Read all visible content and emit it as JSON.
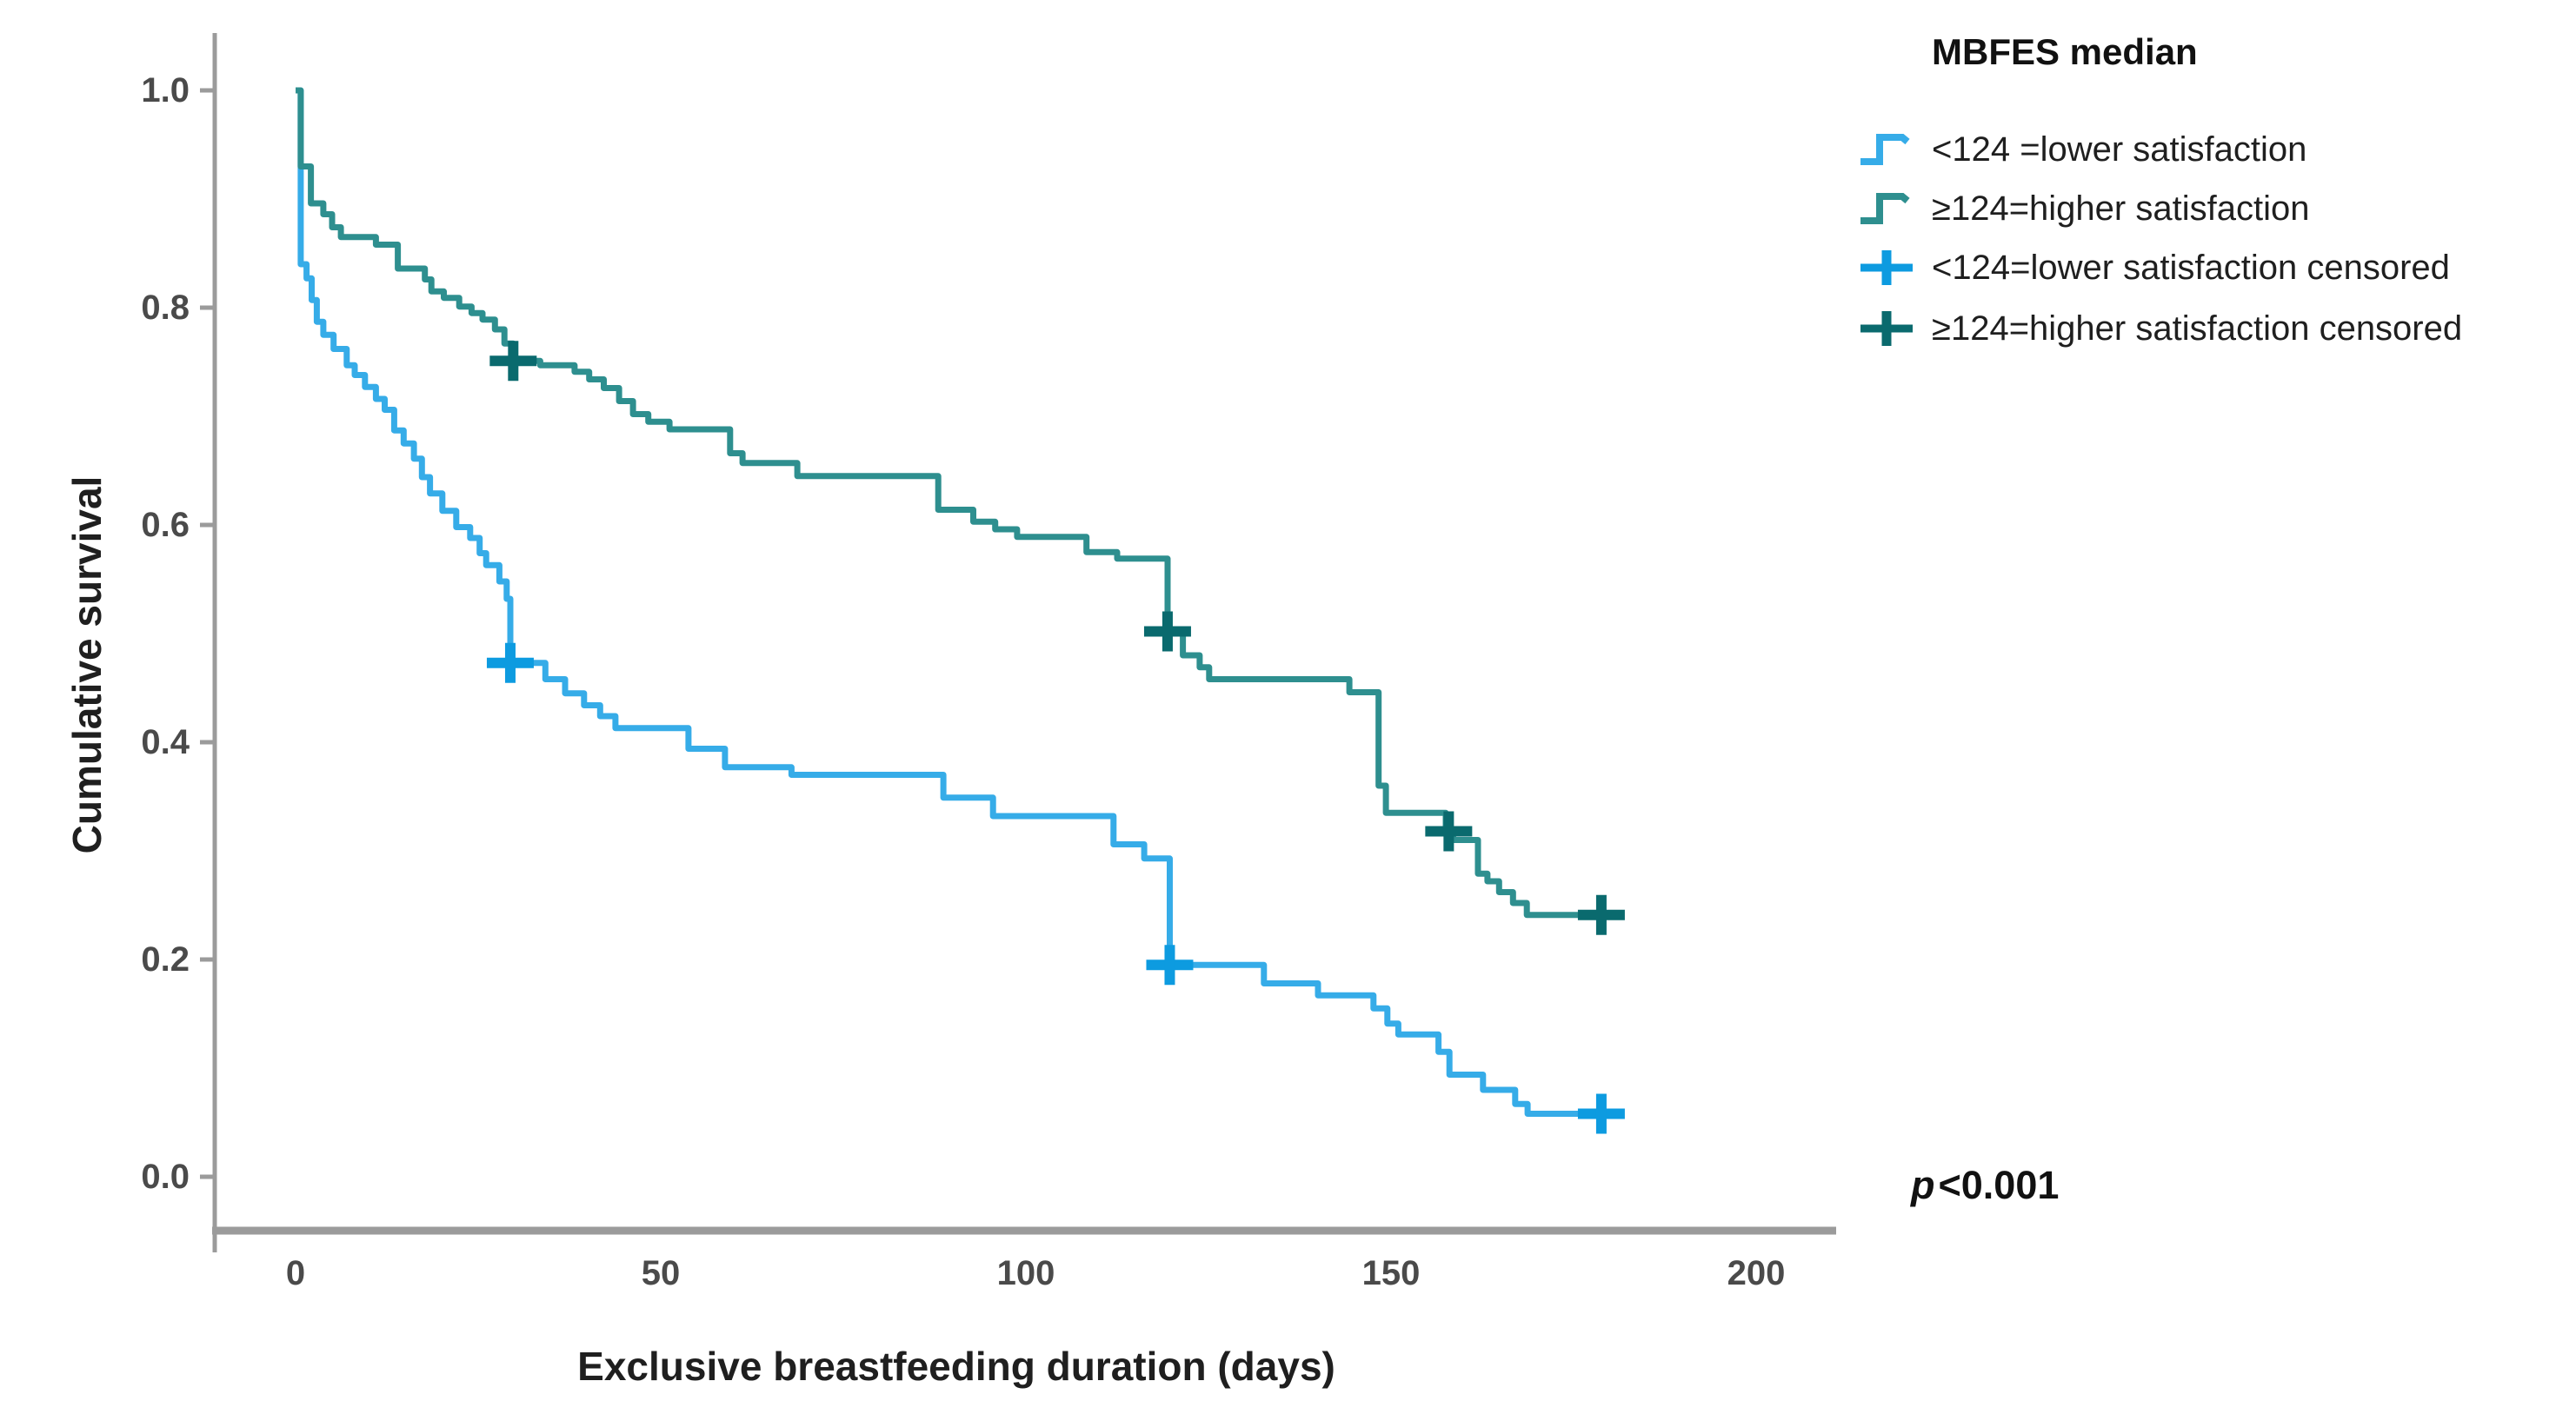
{
  "figure": {
    "p_italic": "p",
    "p_rest": "<0.001"
  },
  "legend": {
    "title": "MBFES median",
    "entries": [
      {
        "label": "<124 =lower satisfaction",
        "marker": "step",
        "color": "#36ACE8"
      },
      {
        "label": "≥124=higher satisfaction",
        "marker": "step",
        "color": "#2E8F8F"
      },
      {
        "label": "<124=lower satisfaction censored",
        "marker": "plus",
        "color": "#0D9BE0"
      },
      {
        "label": "≥124=higher satisfaction censored",
        "marker": "plus",
        "color": "#0A6A6E"
      }
    ]
  },
  "chart_data": {
    "type": "line",
    "subtype": "kaplan-meier-step-survival",
    "title": "",
    "xlabel": "Exclusive breastfeeding duration (days)",
    "ylabel": "Cumulative survival",
    "annotation_p_value": "p<0.001",
    "legend_position": "top-right",
    "grid": false,
    "xlim": [
      -11,
      211
    ],
    "ylim": [
      0.0,
      1.0
    ],
    "xticks": [
      0,
      50,
      100,
      150,
      200
    ],
    "yticks": [
      1.0,
      0.8,
      0.6,
      0.4,
      0.2,
      0.0
    ],
    "xtick_labels": [
      "0",
      "50",
      "100",
      "150",
      "200"
    ],
    "ytick_labels": [
      "1.0",
      "0.8",
      "0.6",
      "0.4",
      "0.2",
      "0.0"
    ],
    "axis_color": "#9B9B9B",
    "series": [
      {
        "name": "<124 =lower satisfaction",
        "group": "MBFES median <124",
        "color": "#36ACE8",
        "censor_color": "#0D9BE0",
        "points": [
          [
            0,
            1.0
          ],
          [
            0.7,
            0.84
          ],
          [
            1.5,
            0.827
          ],
          [
            2.2,
            0.807
          ],
          [
            2.9,
            0.787
          ],
          [
            3.8,
            0.775
          ],
          [
            5.2,
            0.762
          ],
          [
            7.0,
            0.747
          ],
          [
            8.1,
            0.738
          ],
          [
            9.5,
            0.727
          ],
          [
            11.0,
            0.716
          ],
          [
            12.2,
            0.706
          ],
          [
            13.5,
            0.687
          ],
          [
            14.8,
            0.675
          ],
          [
            16.2,
            0.661
          ],
          [
            17.3,
            0.644
          ],
          [
            18.4,
            0.629
          ],
          [
            20.1,
            0.613
          ],
          [
            22.0,
            0.598
          ],
          [
            23.9,
            0.588
          ],
          [
            25.2,
            0.574
          ],
          [
            26.1,
            0.563
          ],
          [
            27.9,
            0.548
          ],
          [
            28.9,
            0.532
          ],
          [
            29.4,
            0.473
          ],
          [
            34.2,
            0.458
          ],
          [
            36.9,
            0.445
          ],
          [
            39.5,
            0.434
          ],
          [
            41.7,
            0.424
          ],
          [
            43.8,
            0.413
          ],
          [
            53.8,
            0.394
          ],
          [
            58.8,
            0.377
          ],
          [
            67.9,
            0.37
          ],
          [
            88.7,
            0.349
          ],
          [
            95.5,
            0.332
          ],
          [
            112.0,
            0.306
          ],
          [
            116.2,
            0.293
          ],
          [
            119.7,
            0.195
          ],
          [
            132.6,
            0.178
          ],
          [
            140.0,
            0.167
          ],
          [
            147.6,
            0.155
          ],
          [
            149.5,
            0.141
          ],
          [
            151.0,
            0.131
          ],
          [
            156.5,
            0.115
          ],
          [
            158.0,
            0.094
          ],
          [
            162.6,
            0.08
          ],
          [
            167.0,
            0.067
          ],
          [
            168.7,
            0.058
          ],
          [
            178.8,
            0.058
          ]
        ],
        "censored": [
          [
            29.4,
            0.473
          ],
          [
            119.7,
            0.195
          ],
          [
            178.8,
            0.058
          ]
        ]
      },
      {
        "name": "≥124=higher satisfaction",
        "group": "MBFES median ≥124",
        "color": "#2E8F8F",
        "censor_color": "#0A6A6E",
        "points": [
          [
            0,
            1.0
          ],
          [
            0.7,
            0.93
          ],
          [
            2.1,
            0.896
          ],
          [
            3.8,
            0.886
          ],
          [
            5.0,
            0.874
          ],
          [
            6.2,
            0.865
          ],
          [
            11.0,
            0.858
          ],
          [
            14.0,
            0.836
          ],
          [
            17.7,
            0.826
          ],
          [
            18.6,
            0.815
          ],
          [
            20.3,
            0.809
          ],
          [
            22.4,
            0.801
          ],
          [
            24.1,
            0.795
          ],
          [
            25.6,
            0.789
          ],
          [
            27.3,
            0.78
          ],
          [
            28.6,
            0.767
          ],
          [
            29.8,
            0.751
          ],
          [
            33.5,
            0.747
          ],
          [
            38.2,
            0.741
          ],
          [
            40.2,
            0.734
          ],
          [
            42.2,
            0.726
          ],
          [
            44.3,
            0.714
          ],
          [
            46.2,
            0.702
          ],
          [
            48.3,
            0.695
          ],
          [
            51.2,
            0.688
          ],
          [
            59.5,
            0.666
          ],
          [
            61.2,
            0.657
          ],
          [
            68.7,
            0.645
          ],
          [
            88.0,
            0.614
          ],
          [
            92.8,
            0.603
          ],
          [
            95.8,
            0.596
          ],
          [
            98.8,
            0.589
          ],
          [
            108.3,
            0.575
          ],
          [
            112.5,
            0.569
          ],
          [
            119.4,
            0.502
          ],
          [
            121.5,
            0.48
          ],
          [
            123.8,
            0.469
          ],
          [
            125.1,
            0.458
          ],
          [
            144.3,
            0.446
          ],
          [
            148.3,
            0.36
          ],
          [
            149.3,
            0.335
          ],
          [
            157.5,
            0.318
          ],
          [
            158.5,
            0.31
          ],
          [
            161.9,
            0.279
          ],
          [
            163.2,
            0.272
          ],
          [
            164.8,
            0.262
          ],
          [
            166.7,
            0.252
          ],
          [
            168.6,
            0.241
          ],
          [
            178.8,
            0.241
          ]
        ],
        "censored": [
          [
            29.8,
            0.751
          ],
          [
            119.4,
            0.502
          ],
          [
            157.9,
            0.318
          ],
          [
            178.8,
            0.241
          ]
        ]
      }
    ]
  }
}
